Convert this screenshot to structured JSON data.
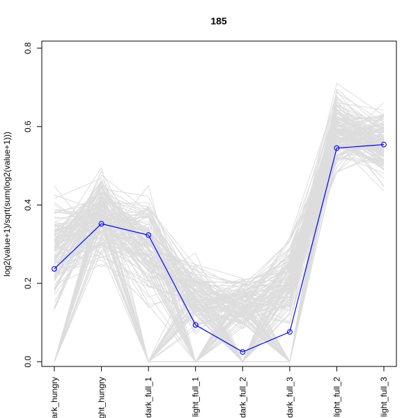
{
  "chart_data": {
    "type": "line",
    "title": "185",
    "ylabel": "log2(value+1)/sqrt(sum(log2(value+1)))",
    "xlabel": "",
    "categories": [
      "dark_hungry",
      "light_hungry",
      "dark_full_1",
      "light_full_1",
      "dark_full_2",
      "dark_full_3",
      "light_full_2",
      "light_full_3"
    ],
    "ylim": [
      0.0,
      0.8
    ],
    "yticks": [
      0.0,
      0.2,
      0.4,
      0.6,
      0.8
    ],
    "ytick_labels": [
      "0.0",
      "0.2",
      "0.4",
      "0.6",
      "0.8"
    ],
    "grid": false,
    "legend": "none",
    "series": [
      {
        "values": [
          0.237,
          0.352,
          0.323,
          0.094,
          0.025,
          0.076,
          0.545,
          0.554
        ],
        "color": "#0000ff",
        "marker": "open-circle"
      }
    ],
    "background_lines": {
      "color": "#dddddd",
      "count": 150,
      "ranges": [
        [
          0.0,
          0.53
        ],
        [
          0.15,
          0.57
        ],
        [
          0.0,
          0.55
        ],
        [
          0.0,
          0.32
        ],
        [
          0.0,
          0.28
        ],
        [
          0.0,
          0.39
        ],
        [
          0.38,
          0.77
        ],
        [
          0.36,
          0.74
        ]
      ]
    }
  }
}
